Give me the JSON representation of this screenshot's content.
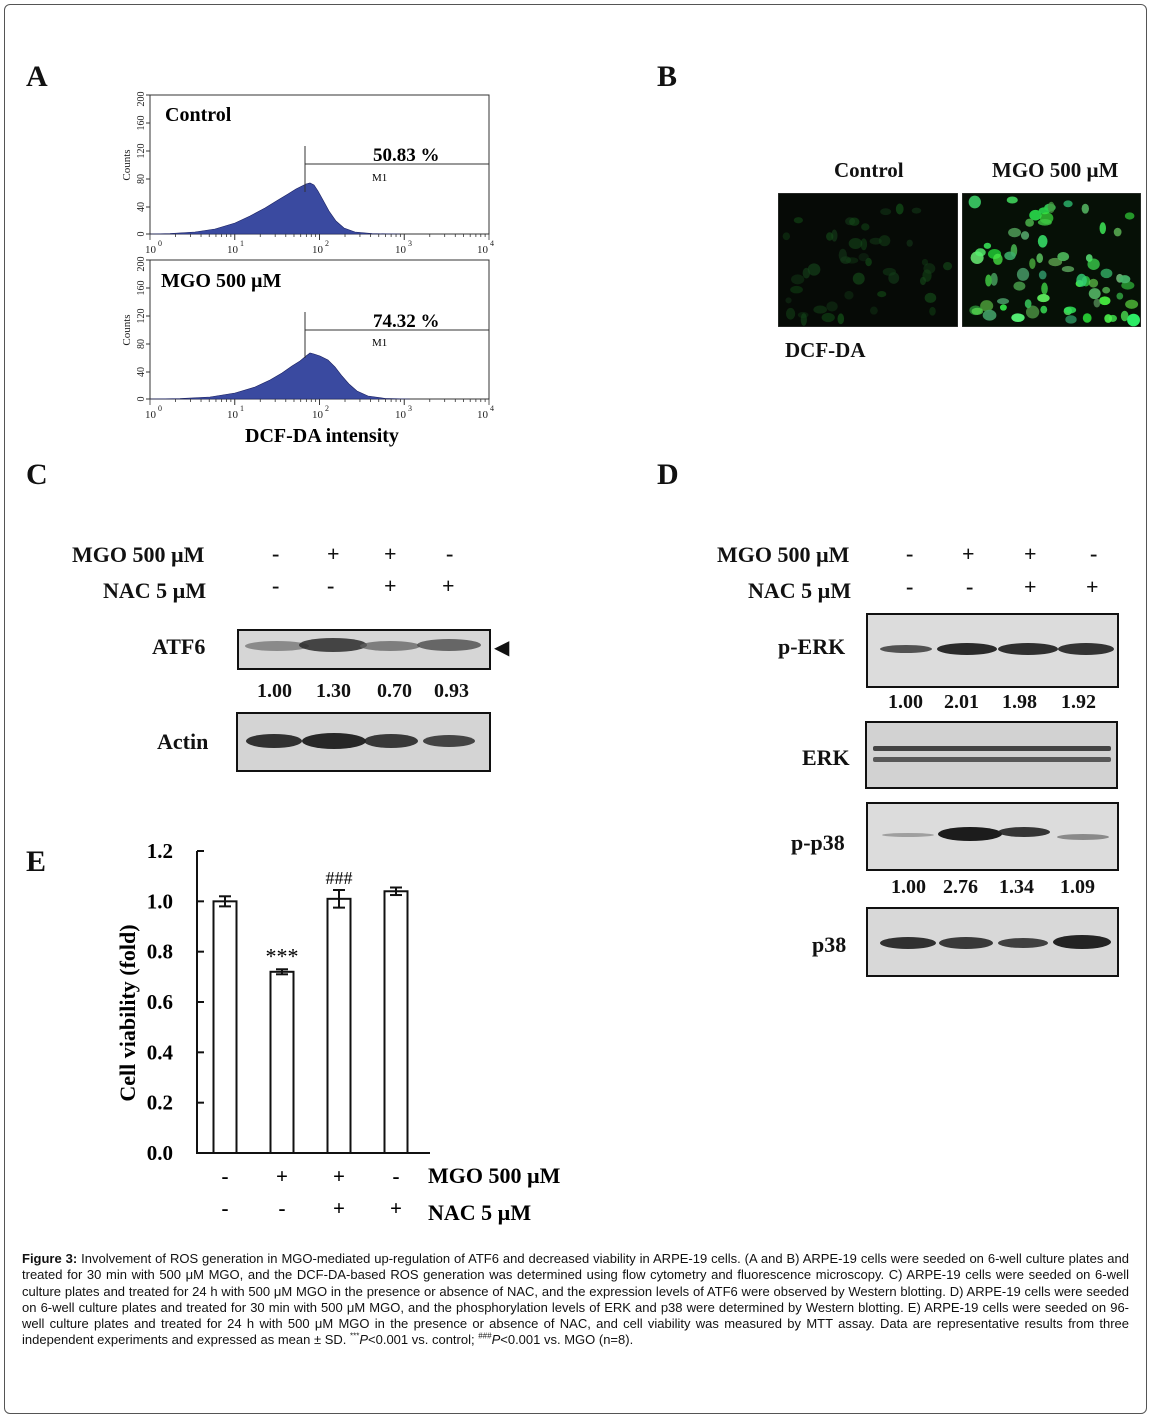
{
  "panels": {
    "a": "A",
    "b": "B",
    "c": "C",
    "d": "D",
    "e": "E"
  },
  "panel_a": {
    "top": {
      "label": "Control",
      "percent": "50.83 %",
      "gate": "M1"
    },
    "bottom": {
      "label": "MGO 500 µM",
      "percent": "74.32 %",
      "gate": "M1"
    },
    "y_axis_label": "Counts",
    "y_ticks": [
      "0",
      "40",
      "80",
      "120",
      "160",
      "200"
    ],
    "x_ticks": [
      "10",
      "10",
      "10",
      "10",
      "10"
    ],
    "x_exponents": [
      "0",
      "1",
      "2",
      "3",
      "4"
    ],
    "x_axis_label": "DCF-DA intensity",
    "fill_color": "#3a4aa0"
  },
  "panel_b": {
    "control_label": "Control",
    "mgo_label": "MGO 500 µM",
    "stain_label": "DCF-DA"
  },
  "panel_c": {
    "treatments": [
      {
        "label": "MGO 500 µM",
        "signs": [
          "-",
          "+",
          "+",
          "-"
        ]
      },
      {
        "label": "NAC 5 µM",
        "signs": [
          "-",
          "-",
          "+",
          "+"
        ]
      }
    ],
    "blots": [
      {
        "label": "ATF6",
        "values": [
          "1.00",
          "1.30",
          "0.70",
          "0.93"
        ],
        "arrow": "◀"
      },
      {
        "label": "Actin"
      }
    ]
  },
  "panel_d": {
    "treatments": [
      {
        "label": "MGO 500 µM",
        "signs": [
          "-",
          "+",
          "+",
          "-"
        ]
      },
      {
        "label": "NAC 5 µM",
        "signs": [
          "-",
          "-",
          "+",
          "+"
        ]
      }
    ],
    "blots": [
      {
        "label": "p-ERK",
        "values": [
          "1.00",
          "2.01",
          "1.98",
          "1.92"
        ]
      },
      {
        "label": "ERK"
      },
      {
        "label": "p-p38",
        "values": [
          "1.00",
          "2.76",
          "1.34",
          "1.09"
        ]
      },
      {
        "label": "p38"
      }
    ]
  },
  "panel_e": {
    "ylabel": "Cell viability  (fold)",
    "y_ticks": [
      "0.0",
      "0.2",
      "0.4",
      "0.6",
      "0.8",
      "1.0",
      "1.2"
    ],
    "treatments": [
      {
        "label": "MGO 500 µM",
        "signs": [
          "-",
          "+",
          "+",
          "-"
        ]
      },
      {
        "label": "NAC 5 µM",
        "signs": [
          "-",
          "-",
          "+",
          "+"
        ]
      }
    ]
  },
  "chart_data": {
    "type": "bar",
    "categories": [
      "Control",
      "MGO",
      "MGO + NAC",
      "NAC"
    ],
    "values": [
      1.0,
      0.72,
      1.01,
      1.04
    ],
    "errors": [
      0.02,
      0.01,
      0.035,
      0.015
    ],
    "annotations": [
      "",
      "***",
      "###",
      ""
    ],
    "xlabel": "",
    "ylabel": "Cell viability  (fold)",
    "ylim": [
      0,
      1.2
    ],
    "grid": false
  },
  "caption": {
    "fig_label": "Figure 3:",
    "text1": " Involvement of ROS generation in MGO-mediated up-regulation of ATF6 and decreased viability in ARPE-19 cells. (A and B) ARPE-19 cells were seeded on 6-well culture plates and treated for 30 min with 500 μM MGO, and the DCF-DA-based ROS generation was determined using flow cytometry and fluorescence microscopy. C) ARPE-19 cells were seeded on 6-well culture plates and treated for 24 h with 500 μM MGO in the presence or absence of NAC, and the expression levels of ATF6 were observed by Western blotting. D) ARPE-19 cells were seeded on 6-well culture plates and treated for 30 min with 500 μM MGO, and the phosphorylation levels of ERK and p38 were determined by Western blotting. E) ARPE-19 cells were seeded on 96-well culture plates and treated for 24 h with 500 μM MGO in the presence or absence of NAC, and cell viability was measured by MTT assay. Data are representative results from three independent experiments and expressed as mean ± SD. ",
    "sup1": "***",
    "p1": "P",
    "text2": "<0.001 vs. control; ",
    "sup2": "###",
    "p2": "P",
    "text3": "<0.001 vs. MGO (n=8)."
  }
}
